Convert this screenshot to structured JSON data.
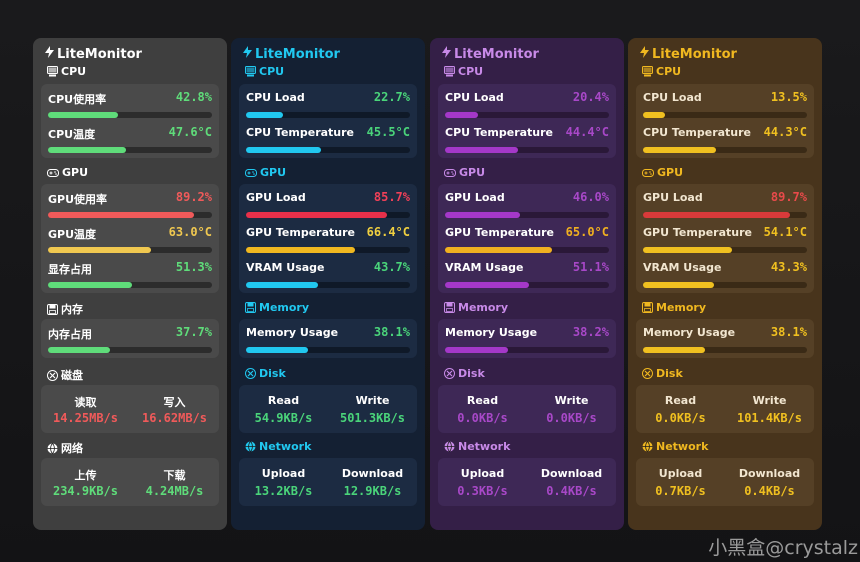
{
  "watermark": "小黑盒@crystalz",
  "panels": [
    {
      "title": "LiteMonitor",
      "theme": {
        "bg": "#3f3f3f",
        "card": "#4a4a4a",
        "text": "#ffffff",
        "accent": "#ffffff",
        "label": "#ffffff",
        "track": "#2c2c2c"
      },
      "cpu": {
        "header": "CPU",
        "rows": [
          {
            "label": "CPU使用率",
            "value": "42.8%",
            "pct": 42.8,
            "color": "#5fdc7a"
          },
          {
            "label": "CPU温度",
            "value": "47.6°C",
            "pct": 47.6,
            "color": "#5fdc7a"
          }
        ]
      },
      "gpu": {
        "header": "GPU",
        "rows": [
          {
            "label": "GPU使用率",
            "value": "89.2%",
            "pct": 89.2,
            "color": "#f05a5a"
          },
          {
            "label": "GPU温度",
            "value": "63.0°C",
            "pct": 63.0,
            "color": "#f0c850"
          },
          {
            "label": "显存占用",
            "value": "51.3%",
            "pct": 51.3,
            "color": "#5fdc7a"
          }
        ]
      },
      "memory": {
        "header": "内存",
        "rows": [
          {
            "label": "内存占用",
            "value": "37.7%",
            "pct": 37.7,
            "color": "#5fdc7a"
          }
        ]
      },
      "disk": {
        "header": "磁盘",
        "left_label": "读取",
        "left_value": "14.25MB/s",
        "left_color": "#f05a5a",
        "right_label": "写入",
        "right_value": "16.62MB/s",
        "right_color": "#f05a5a"
      },
      "network": {
        "header": "网络",
        "left_label": "上传",
        "left_value": "234.9KB/s",
        "left_color": "#5fdc7a",
        "right_label": "下载",
        "right_value": "4.24MB/s",
        "right_color": "#5fdc7a"
      }
    },
    {
      "title": "LiteMonitor",
      "theme": {
        "bg": "#142033",
        "card": "#1c2b42",
        "text": "#ffffff",
        "accent": "#21c8f0",
        "label": "#ffffff",
        "track": "#0f1928"
      },
      "cpu": {
        "header": "CPU",
        "rows": [
          {
            "label": "CPU Load",
            "value": "22.7%",
            "pct": 22.7,
            "color": "#21c8f0",
            "vcolor": "#4ad47a"
          },
          {
            "label": "CPU Temperature",
            "value": "45.5°C",
            "pct": 45.5,
            "color": "#21c8f0",
            "vcolor": "#4ad47a"
          }
        ]
      },
      "gpu": {
        "header": "GPU",
        "rows": [
          {
            "label": "GPU Load",
            "value": "85.7%",
            "pct": 85.7,
            "color": "#e8304a",
            "vcolor": "#f04058"
          },
          {
            "label": "GPU Temperature",
            "value": "66.4°C",
            "pct": 66.4,
            "color": "#f0b820",
            "vcolor": "#f0d040"
          },
          {
            "label": "VRAM Usage",
            "value": "43.7%",
            "pct": 43.7,
            "color": "#21c8f0",
            "vcolor": "#4ad47a"
          }
        ]
      },
      "memory": {
        "header": "Memory",
        "rows": [
          {
            "label": "Memory Usage",
            "value": "38.1%",
            "pct": 38.1,
            "color": "#21c8f0",
            "vcolor": "#4ad47a"
          }
        ]
      },
      "disk": {
        "header": "Disk",
        "left_label": "Read",
        "left_value": "54.9KB/s",
        "left_color": "#4ad47a",
        "right_label": "Write",
        "right_value": "501.3KB/s",
        "right_color": "#4ad47a"
      },
      "network": {
        "header": "Network",
        "left_label": "Upload",
        "left_value": "13.2KB/s",
        "left_color": "#4ad47a",
        "right_label": "Download",
        "right_value": "12.9KB/s",
        "right_color": "#4ad47a"
      }
    },
    {
      "title": "LiteMonitor",
      "theme": {
        "bg": "#341f47",
        "card": "#3e2856",
        "text": "#e8d8f4",
        "accent": "#c88ae8",
        "label": "#ffffff",
        "track": "#2a1838"
      },
      "cpu": {
        "header": "CPU",
        "rows": [
          {
            "label": "CPU Load",
            "value": "20.4%",
            "pct": 20.4,
            "color": "#a438c8",
            "vcolor": "#a848c8"
          },
          {
            "label": "CPU Temperature",
            "value": "44.4°C",
            "pct": 44.4,
            "color": "#a438c8",
            "vcolor": "#a848c8"
          }
        ]
      },
      "gpu": {
        "header": "GPU",
        "rows": [
          {
            "label": "GPU Load",
            "value": "46.0%",
            "pct": 46.0,
            "color": "#a438c8",
            "vcolor": "#a848c8"
          },
          {
            "label": "GPU Temperature",
            "value": "65.0°C",
            "pct": 65.0,
            "color": "#f0b020",
            "vcolor": "#f0b020"
          },
          {
            "label": "VRAM Usage",
            "value": "51.1%",
            "pct": 51.1,
            "color": "#a438c8",
            "vcolor": "#a848c8"
          }
        ]
      },
      "memory": {
        "header": "Memory",
        "rows": [
          {
            "label": "Memory Usage",
            "value": "38.2%",
            "pct": 38.2,
            "color": "#a438c8",
            "vcolor": "#a848c8"
          }
        ]
      },
      "disk": {
        "header": "Disk",
        "left_label": "Read",
        "left_value": "0.0KB/s",
        "left_color": "#a848c8",
        "right_label": "Write",
        "right_value": "0.0KB/s",
        "right_color": "#a848c8"
      },
      "network": {
        "header": "Network",
        "left_label": "Upload",
        "left_value": "0.3KB/s",
        "left_color": "#a848c8",
        "right_label": "Download",
        "right_value": "0.4KB/s",
        "right_color": "#a848c8"
      }
    },
    {
      "title": "LiteMonitor",
      "theme": {
        "bg": "#48341c",
        "card": "#554026",
        "text": "#f6e8cc",
        "accent": "#f0b820",
        "label": "#f2e6d0",
        "track": "#3a2a16"
      },
      "cpu": {
        "header": "CPU",
        "rows": [
          {
            "label": "CPU Load",
            "value": "13.5%",
            "pct": 13.5,
            "color": "#f0c020",
            "vcolor": "#f0c020"
          },
          {
            "label": "CPU Temperature",
            "value": "44.3°C",
            "pct": 44.3,
            "color": "#f0c020",
            "vcolor": "#f0c020"
          }
        ]
      },
      "gpu": {
        "header": "GPU",
        "rows": [
          {
            "label": "GPU Load",
            "value": "89.7%",
            "pct": 89.7,
            "color": "#d83a3a",
            "vcolor": "#e84a4a"
          },
          {
            "label": "GPU Temperature",
            "value": "54.1°C",
            "pct": 54.1,
            "color": "#f0c020",
            "vcolor": "#f0c020"
          },
          {
            "label": "VRAM Usage",
            "value": "43.3%",
            "pct": 43.3,
            "color": "#f0c020",
            "vcolor": "#f0c020"
          }
        ]
      },
      "memory": {
        "header": "Memory",
        "rows": [
          {
            "label": "Memory Usage",
            "value": "38.1%",
            "pct": 38.1,
            "color": "#f0c020",
            "vcolor": "#f0c020"
          }
        ]
      },
      "disk": {
        "header": "Disk",
        "left_label": "Read",
        "left_value": "0.0KB/s",
        "left_color": "#f0c020",
        "right_label": "Write",
        "right_value": "101.4KB/s",
        "right_color": "#f0c020"
      },
      "network": {
        "header": "Network",
        "left_label": "Upload",
        "left_value": "0.7KB/s",
        "left_color": "#f0c020",
        "right_label": "Download",
        "right_value": "0.4KB/s",
        "right_color": "#f0c020"
      }
    }
  ]
}
